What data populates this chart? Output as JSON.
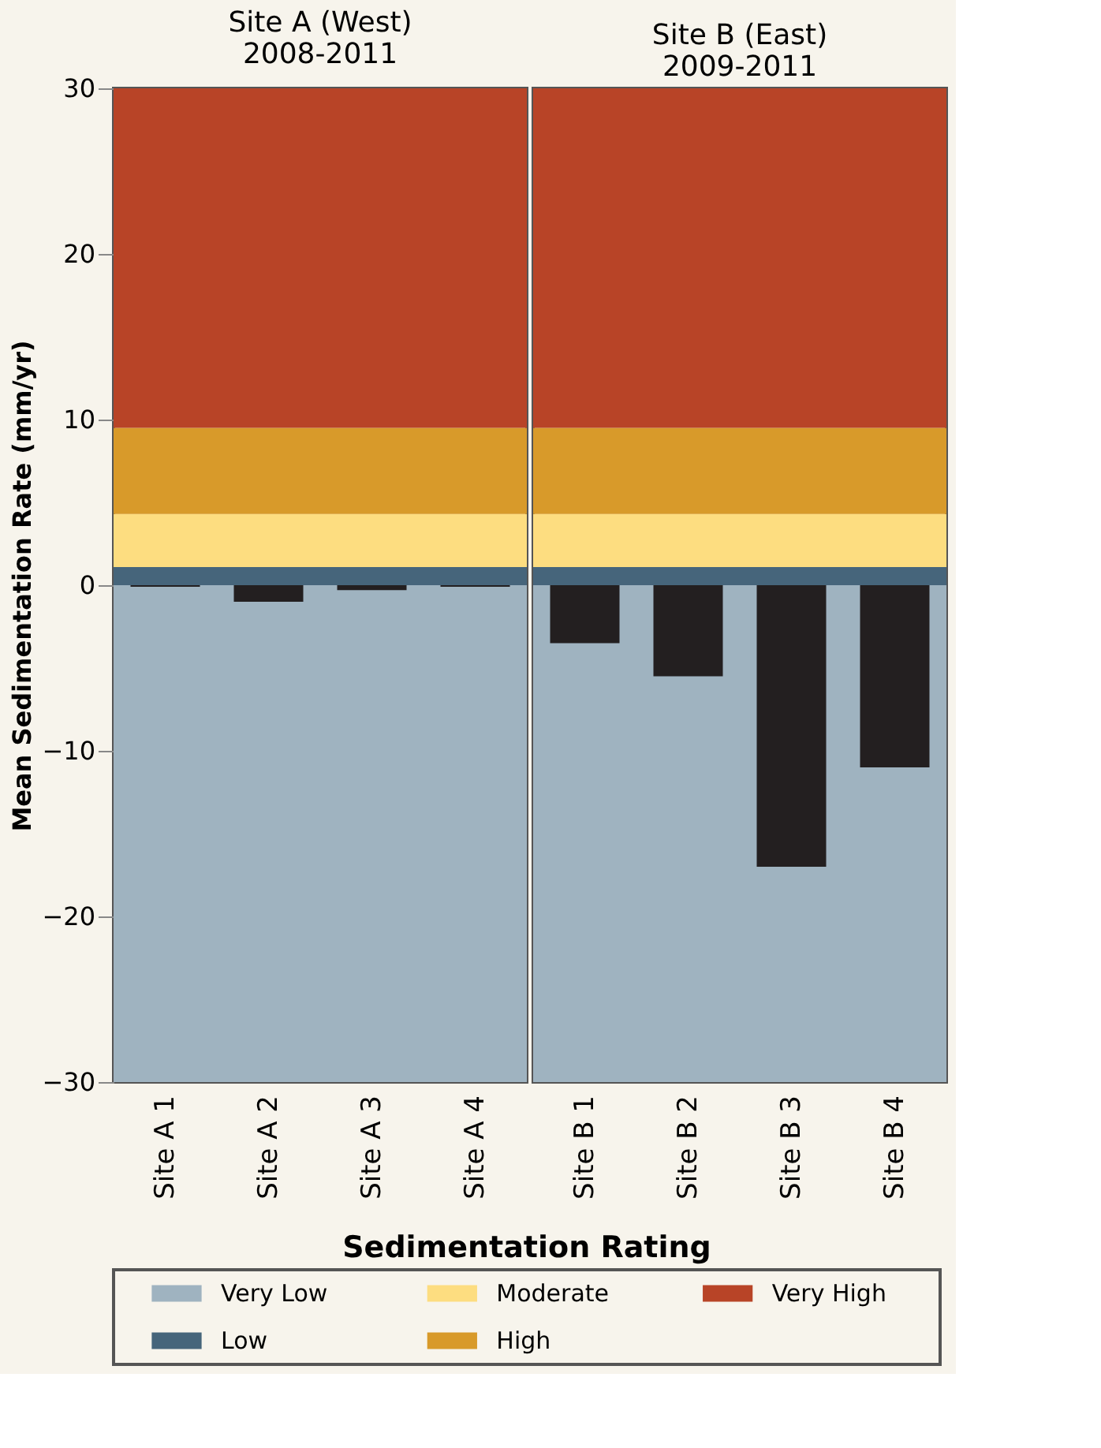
{
  "chart_data": [
    {
      "type": "bar",
      "title": "Site A (West)\n2008-2011",
      "ylabel": "Mean Sedimentation Rate (mm/yr)",
      "categories": [
        "Site A 1",
        "Site A 2",
        "Site A 3",
        "Site A 4"
      ],
      "values": [
        -0.1,
        -1.0,
        -0.3,
        -0.1
      ],
      "color": "#231f20",
      "ylim": [
        -30,
        30
      ],
      "yticks": [
        -30,
        -20,
        -10,
        0,
        10,
        20,
        30
      ],
      "grid": false,
      "legend": "bottom",
      "legend_title": "Sedimentation Rating",
      "bands": [
        {
          "axis": "y",
          "from": -30,
          "to": 0,
          "label": "Very Low",
          "color": "#9fb3c0"
        },
        {
          "axis": "y",
          "from": 0,
          "to": 1.1,
          "label": "Low",
          "color": "#46657b"
        },
        {
          "axis": "y",
          "from": 1.1,
          "to": 4.3,
          "label": "Moderate",
          "color": "#fddd80"
        },
        {
          "axis": "y",
          "from": 4.3,
          "to": 9.5,
          "label": "High",
          "color": "#d89a2a"
        },
        {
          "axis": "y",
          "from": 9.5,
          "to": 30,
          "label": "Very High",
          "color": "#b84427"
        }
      ]
    },
    {
      "type": "bar",
      "title": "Site B (East)\n2009-2011",
      "categories": [
        "Site B 1",
        "Site B 2",
        "Site B 3",
        "Site B 4"
      ],
      "values": [
        -3.5,
        -5.5,
        -17.0,
        -11.0
      ],
      "color": "#231f20",
      "ylim": [
        -30,
        30
      ],
      "tick_labels": "x",
      "grid": false,
      "bands": [
        {
          "axis": "y",
          "from": -30,
          "to": 0,
          "color": "#9fb3c0"
        },
        {
          "axis": "y",
          "from": 0,
          "to": 1.1,
          "color": "#46657b"
        },
        {
          "axis": "y",
          "from": 1.1,
          "to": 4.3,
          "color": "#fddd80"
        },
        {
          "axis": "y",
          "from": 4.3,
          "to": 9.5,
          "color": "#d89a2a"
        },
        {
          "axis": "y",
          "from": 9.5,
          "to": 30,
          "color": "#b84427"
        }
      ]
    }
  ]
}
